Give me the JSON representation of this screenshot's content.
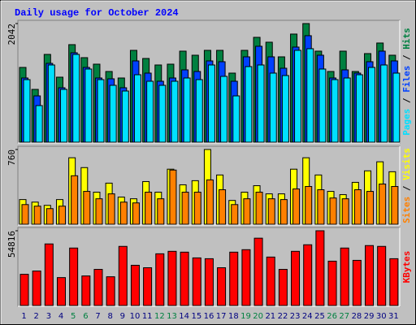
{
  "chart_data": {
    "type": "bar",
    "title": "Daily usage for October 2024",
    "categories": [
      "1",
      "2",
      "3",
      "4",
      "5",
      "6",
      "7",
      "8",
      "9",
      "10",
      "11",
      "12",
      "13",
      "14",
      "15",
      "16",
      "17",
      "18",
      "19",
      "20",
      "21",
      "22",
      "23",
      "24",
      "25",
      "26",
      "27",
      "28",
      "29",
      "30",
      "31"
    ],
    "highlight_categories": [
      "5",
      "6",
      "12",
      "13",
      "19",
      "20",
      "26",
      "27"
    ],
    "label_color": "#000080",
    "highlight_color": "#008040",
    "separator": " / ",
    "panels": [
      {
        "ylim": [
          0,
          2042
        ],
        "yticks": [
          2042
        ],
        "series": [
          {
            "name": "Hits",
            "color": "#008040",
            "values": [
              1287,
              909,
              1511,
              1119,
              1679,
              1455,
              1343,
              1217,
              1105,
              1581,
              1441,
              1329,
              1343,
              1567,
              1497,
              1581,
              1581,
              1189,
              1581,
              1805,
              1721,
              1469,
              1861,
              2042,
              1567,
              1217,
              1567,
              1217,
              1525,
              1707,
              1497
            ]
          },
          {
            "name": "Files",
            "color": "#0040ff",
            "values": [
              1105,
              797,
              1357,
              937,
              1539,
              1287,
              1105,
              1091,
              937,
              1399,
              1189,
              1049,
              1105,
              1245,
              1217,
              1399,
              1385,
              1049,
              1469,
              1651,
              1469,
              1273,
              1637,
              1833,
              1497,
              1105,
              1245,
              1189,
              1385,
              1567,
              1399
            ]
          },
          {
            "name": "Pages",
            "color": "#00e0ff",
            "values": [
              1077,
              630,
              1329,
              909,
              1511,
              1259,
              1077,
              979,
              881,
              1161,
              1049,
              979,
              1049,
              1105,
              1077,
              1329,
              1133,
              797,
              1301,
              1329,
              1189,
              1147,
              1581,
              1609,
              1259,
              1077,
              1105,
              1161,
              1287,
              1329,
              1189
            ]
          }
        ]
      },
      {
        "ylim": [
          0,
          760
        ],
        "yticks": [
          760
        ],
        "series": [
          {
            "name": "Visits",
            "color": "#ffff00",
            "values": [
              251,
              225,
              192,
              251,
              676,
              576,
              326,
              418,
              276,
              259,
              434,
              326,
              560,
              401,
              443,
              760,
              501,
              242,
              326,
              392,
              309,
              309,
              560,
              676,
              501,
              334,
              301,
              426,
              543,
              635,
              534
            ]
          },
          {
            "name": "Sites",
            "color": "#ff8000",
            "values": [
              200,
              184,
              159,
              184,
              493,
              334,
              259,
              309,
              225,
              217,
              326,
              259,
              551,
              326,
              326,
              451,
              351,
              200,
              259,
              326,
              259,
              251,
              359,
              384,
              351,
              267,
              259,
              351,
              334,
              409,
              384
            ]
          }
        ]
      },
      {
        "ylim": [
          0,
          54816
        ],
        "yticks": [
          54816
        ],
        "series": [
          {
            "name": "KBytes",
            "color": "#ff0000",
            "values": [
              22876,
              25284,
              45150,
              20468,
              42140,
              21672,
              26488,
              21070,
              43344,
              29498,
              27692,
              37926,
              39732,
              39130,
              34916,
              34314,
              27692,
              39130,
              40936,
              49364,
              35518,
              26488,
              39732,
              44548,
              54816,
              32508,
              42140,
              33110,
              43946,
              43344,
              34314
            ]
          }
        ]
      }
    ]
  }
}
